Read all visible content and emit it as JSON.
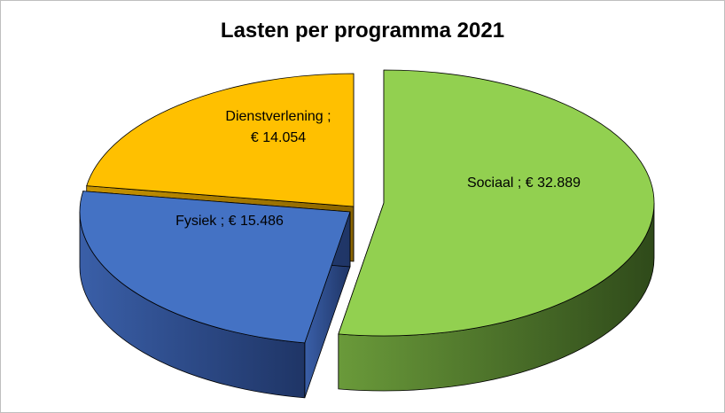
{
  "chart_data": {
    "type": "pie",
    "title": "Lasten per programma 2021",
    "three_d": true,
    "exploded": true,
    "legend": "none",
    "slices": [
      {
        "name": "Sociaal",
        "value": 32.889,
        "label_line1": "Sociaal ;  € 32.889",
        "label_line2": "",
        "color": "#92d050"
      },
      {
        "name": "Fysiek",
        "value": 15.486,
        "label_line1": "Fysiek ;  € 15.486",
        "label_line2": "",
        "color": "#4472c4"
      },
      {
        "name": "Dienstverlening",
        "value": 14.054,
        "label_line1": "Dienstverlening ;",
        "label_line2": "€ 14.054",
        "color": "#ffc000"
      }
    ]
  }
}
